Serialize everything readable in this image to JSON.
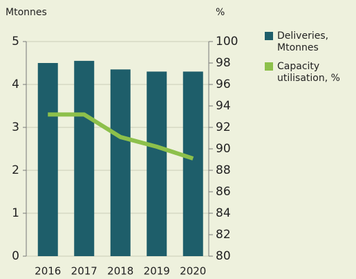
{
  "chart_data": {
    "type": "bar_line",
    "ylabel": "Mtonnes",
    "y2label": "%",
    "categories": [
      "2016",
      "2017",
      "2018",
      "2019",
      "2020"
    ],
    "series": [
      {
        "name": "Deliveries, Mtonnes",
        "type": "bar",
        "color": "#1e5e6a",
        "values": [
          4.5,
          4.55,
          4.35,
          4.3,
          4.3
        ]
      },
      {
        "name": "Capacity utilisation, %",
        "type": "line",
        "axis": "y2",
        "color": "#8dc04b",
        "values": [
          93.2,
          93.2,
          91.1,
          90.2,
          89.1
        ]
      }
    ],
    "ylim": [
      0,
      5
    ],
    "yticks": [
      0,
      1,
      2,
      3,
      4,
      5
    ],
    "y2lim": [
      80,
      100
    ],
    "y2ticks": [
      80,
      82,
      84,
      86,
      88,
      90,
      92,
      94,
      96,
      98,
      100
    ],
    "grid": true,
    "legend": "right"
  }
}
